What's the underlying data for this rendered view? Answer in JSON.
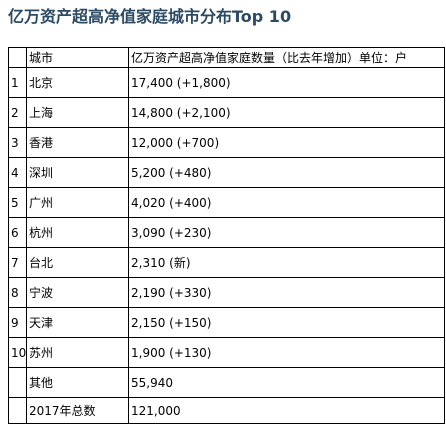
{
  "title": "亿万资产超高净值家庭城市分布Top 10",
  "table": {
    "header": {
      "rank": "",
      "city": "城市",
      "value": "亿万资产超高净值家庭数量（比去年增加）单位：户"
    },
    "rows": [
      {
        "rank": "1",
        "city": "北京",
        "value": "17,400 (+1,800)"
      },
      {
        "rank": "2",
        "city": "上海",
        "value": "14,800 (+2,100)"
      },
      {
        "rank": "3",
        "city": "香港",
        "value": "12,000 (+700)"
      },
      {
        "rank": "4",
        "city": "深圳",
        "value": "5,200 (+480)"
      },
      {
        "rank": "5",
        "city": "广州",
        "value": "4,020 (+400)"
      },
      {
        "rank": "6",
        "city": "杭州",
        "value": "3,090 (+230)"
      },
      {
        "rank": "7",
        "city": "台北",
        "value": "2,310 (新)"
      },
      {
        "rank": "8",
        "city": "宁波",
        "value": "2,190 (+330)"
      },
      {
        "rank": "9",
        "city": "天津",
        "value": "2,150 (+150)"
      },
      {
        "rank": "10",
        "city": "苏州",
        "value": "1,900 (+130)"
      },
      {
        "rank": "",
        "city": "其他",
        "value": "55,940"
      },
      {
        "rank": "",
        "city": "2017年总数",
        "value": "121,000"
      }
    ]
  }
}
